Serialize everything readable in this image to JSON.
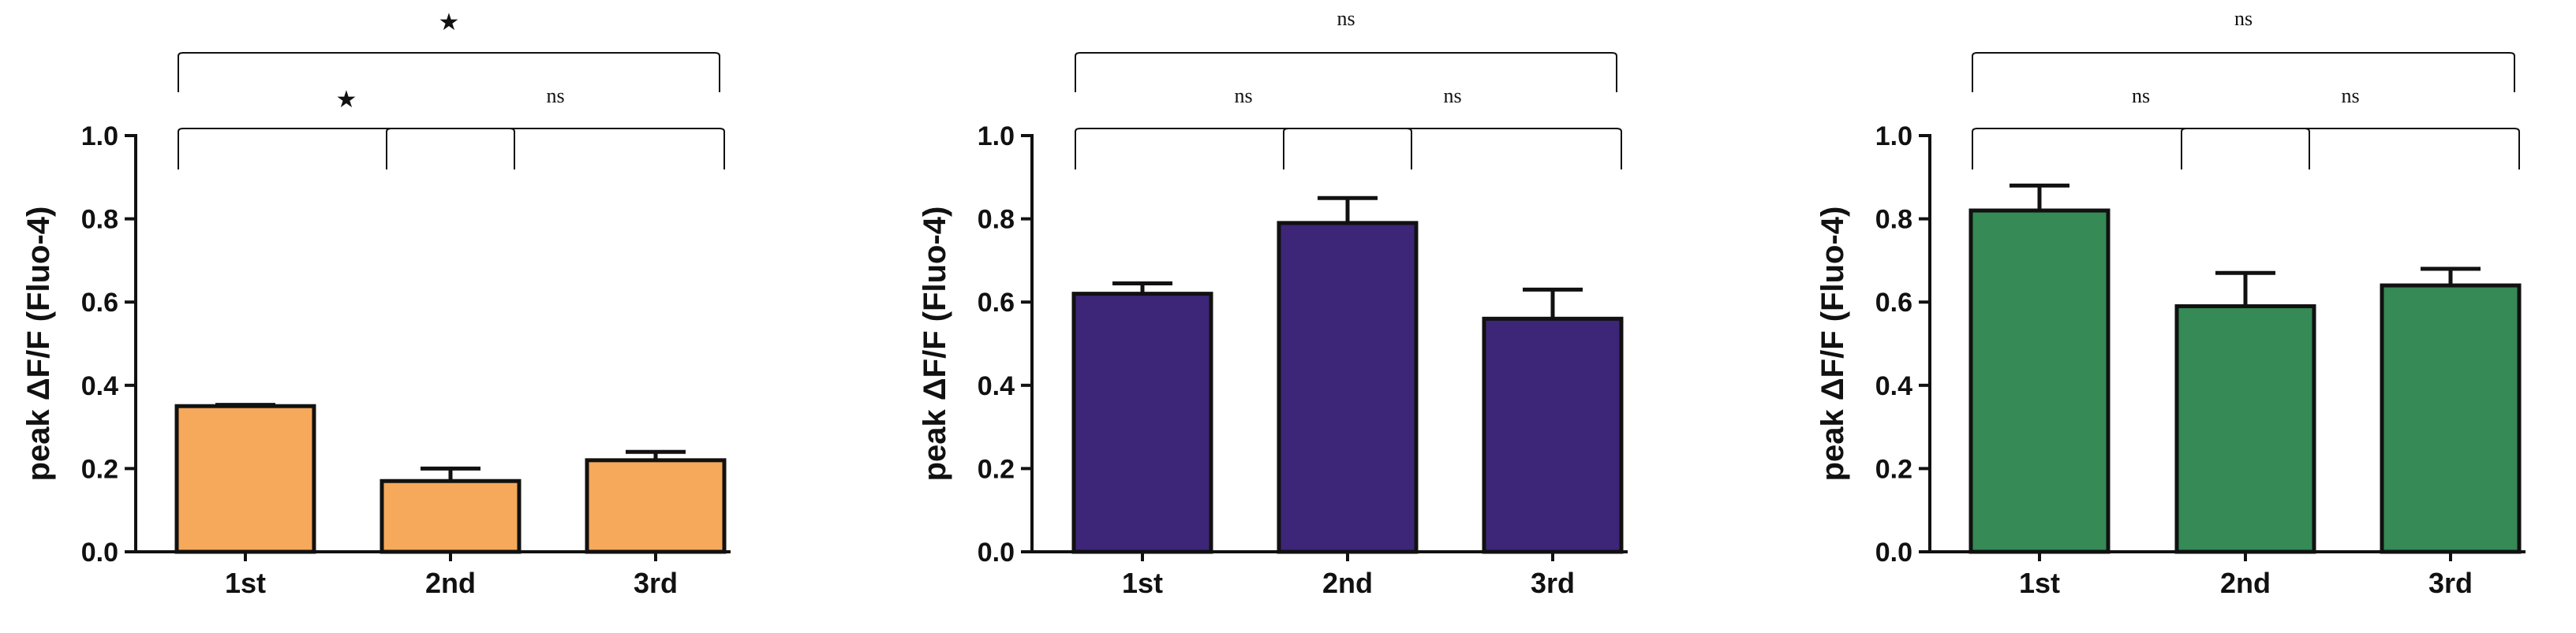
{
  "chart_data": [
    {
      "type": "bar",
      "categories": [
        "1st",
        "2nd",
        "3rd"
      ],
      "values": [
        0.35,
        0.17,
        0.22
      ],
      "errors": [
        0.003,
        0.03,
        0.02
      ],
      "ylabel": "peak ΔF/F (Fluo-4)",
      "ylim": [
        0,
        1.0
      ],
      "yticks": [
        "0.0",
        "0.2",
        "0.4",
        "0.6",
        "0.8",
        "1.0"
      ],
      "color": "#f6a95a",
      "comparisons": [
        {
          "pair": [
            "1st",
            "2nd"
          ],
          "label": "★"
        },
        {
          "pair": [
            "2nd",
            "3rd"
          ],
          "label": "ns"
        },
        {
          "pair": [
            "1st",
            "3rd"
          ],
          "label": "★"
        }
      ]
    },
    {
      "type": "bar",
      "categories": [
        "1st",
        "2nd",
        "3rd"
      ],
      "values": [
        0.62,
        0.79,
        0.56
      ],
      "errors": [
        0.025,
        0.06,
        0.07
      ],
      "ylabel": "peak ΔF/F (Fluo-4)",
      "ylim": [
        0,
        1.0
      ],
      "yticks": [
        "0.0",
        "0.2",
        "0.4",
        "0.6",
        "0.8",
        "1.0"
      ],
      "color": "#3d2577",
      "comparisons": [
        {
          "pair": [
            "1st",
            "2nd"
          ],
          "label": "ns"
        },
        {
          "pair": [
            "2nd",
            "3rd"
          ],
          "label": "ns"
        },
        {
          "pair": [
            "1st",
            "3rd"
          ],
          "label": "ns"
        }
      ]
    },
    {
      "type": "bar",
      "categories": [
        "1st",
        "2nd",
        "3rd"
      ],
      "values": [
        0.82,
        0.59,
        0.64
      ],
      "errors": [
        0.06,
        0.08,
        0.04
      ],
      "ylabel": "peak ΔF/F (Fluo-4)",
      "ylim": [
        0,
        1.0
      ],
      "yticks": [
        "0.0",
        "0.2",
        "0.4",
        "0.6",
        "0.8",
        "1.0"
      ],
      "color": "#358a55",
      "comparisons": [
        {
          "pair": [
            "1st",
            "2nd"
          ],
          "label": "ns"
        },
        {
          "pair": [
            "2nd",
            "3rd"
          ],
          "label": "ns"
        },
        {
          "pair": [
            "1st",
            "3rd"
          ],
          "label": "ns"
        }
      ]
    }
  ]
}
